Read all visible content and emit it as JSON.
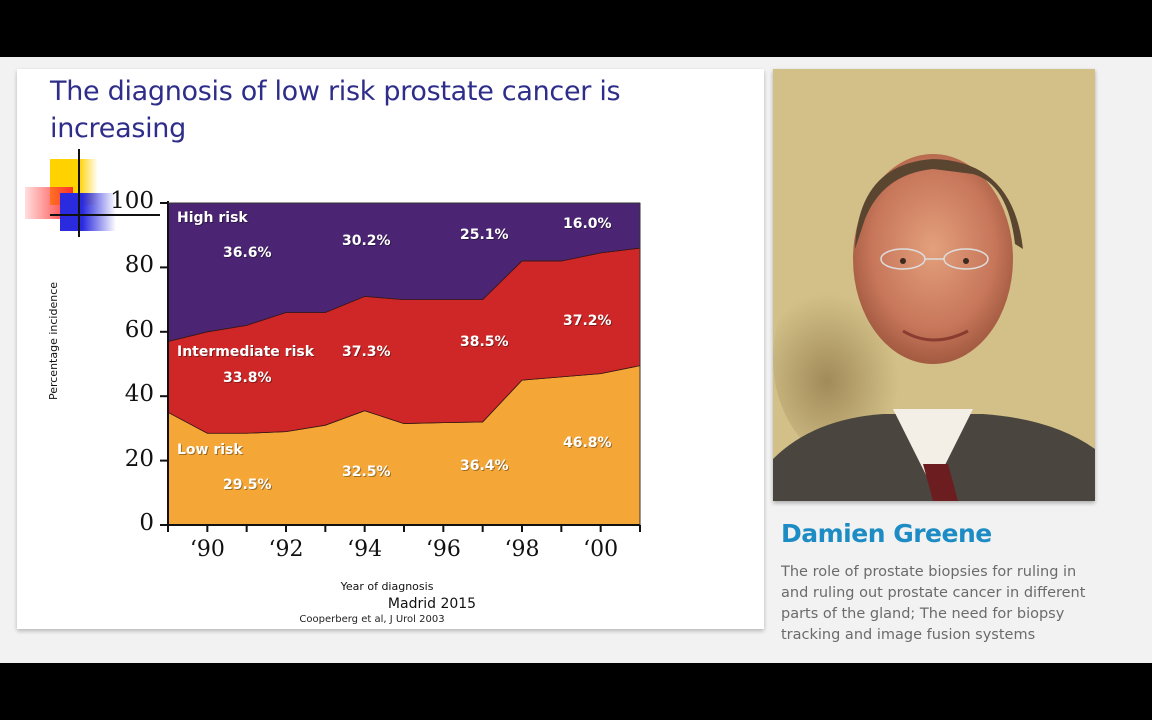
{
  "slide": {
    "title": "The diagnosis of low risk prostate cancer is increasing",
    "footer_event": "Madrid 2015",
    "citation": "Cooperberg et al, J Urol 2003"
  },
  "speaker": {
    "name": "Damien Greene",
    "description": "The role of prostate biopsies for ruling in and ruling out prostate cancer in different parts of the gland; The need for biopsy tracking and image fusion systems",
    "photo_alt": "speaker-portrait"
  },
  "colors": {
    "title": "#2e2e8a",
    "high_risk": "#4b2573",
    "intermediate_risk": "#cf2727",
    "low_risk": "#f4a636",
    "speaker_name": "#1d8cc4"
  },
  "chart_data": {
    "type": "area",
    "stacked": true,
    "title": "",
    "xlabel": "Year of diagnosis",
    "ylabel": "Percentage incidence",
    "ylim": [
      0,
      100
    ],
    "yticks": [
      "0",
      "20",
      "40",
      "60",
      "80",
      "100"
    ],
    "xtick_labels": [
      "‘90",
      "‘92",
      "‘94",
      "‘96",
      "‘98",
      "‘00"
    ],
    "x": [
      1989,
      1990,
      1991,
      1992,
      1993,
      1994,
      1995,
      1996,
      1997,
      1998,
      1999,
      2000,
      2001
    ],
    "series": [
      {
        "name": "Low risk",
        "values": [
          35,
          28.5,
          28.5,
          29,
          31,
          35.5,
          31.5,
          31.8,
          32,
          45,
          46,
          47,
          49.5
        ]
      },
      {
        "name": "Intermediate risk",
        "values": [
          22,
          31.5,
          33.5,
          37,
          35,
          35.5,
          38.5,
          38.2,
          38,
          37,
          36,
          37.5,
          36.5
        ]
      },
      {
        "name": "High risk",
        "values": [
          43,
          40,
          38,
          34,
          34,
          29,
          30,
          30,
          30,
          18,
          18,
          15.5,
          14
        ]
      }
    ],
    "annotations": {
      "high_risk": [
        "36.6%",
        "30.2%",
        "25.1%",
        "16.0%"
      ],
      "intermediate_risk": [
        "33.8%",
        "37.3%",
        "38.5%",
        "37.2%"
      ],
      "low_risk": [
        "29.5%",
        "32.5%",
        "36.4%",
        "46.8%"
      ]
    },
    "legend_in_area_labels": [
      "High risk",
      "Intermediate risk",
      "Low risk"
    ],
    "grid": false
  }
}
